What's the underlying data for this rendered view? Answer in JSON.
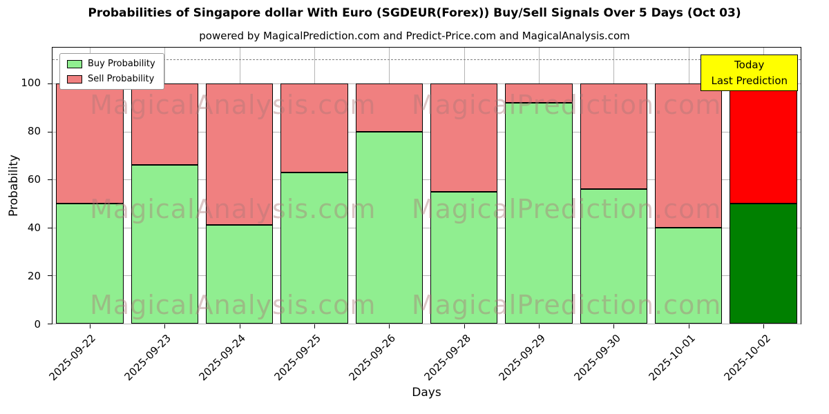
{
  "chart_data": {
    "type": "bar",
    "stacked": true,
    "title": "Probabilities of Singapore dollar With Euro (SGDEUR(Forex)) Buy/Sell Signals Over 5 Days (Oct 03)",
    "subtitle": "powered by MagicalPrediction.com and Predict-Price.com and MagicalAnalysis.com",
    "categories": [
      "2025-09-22",
      "2025-09-23",
      "2025-09-24",
      "2025-09-25",
      "2025-09-26",
      "2025-09-28",
      "2025-09-29",
      "2025-09-30",
      "2025-10-01",
      "2025-10-02"
    ],
    "series": [
      {
        "name": "Buy Probability",
        "values": [
          50,
          66,
          41,
          63,
          80,
          55,
          92,
          56,
          40,
          50
        ],
        "color": "#90EE90",
        "last_bar_color": "#008000"
      },
      {
        "name": "Sell Probability",
        "values": [
          50,
          34,
          59,
          37,
          20,
          45,
          8,
          44,
          60,
          50
        ],
        "color": "#F08080",
        "last_bar_color": "#FF0000"
      }
    ],
    "xlabel": "Days",
    "ylabel": "Probability",
    "ylim": [
      0,
      115
    ],
    "yticks": [
      0,
      20,
      40,
      60,
      80,
      100
    ],
    "dashed_line_y": 110,
    "grid": true,
    "bar_width": 0.9,
    "legend_position": "upper left",
    "annotation_box": {
      "line1": "Today",
      "line2": "Last Prediction",
      "bg": "#FFFF00"
    },
    "watermarks": {
      "left_text": "MagicalAnalysis.com",
      "right_text": "MagicalPrediction.com",
      "rows": 3
    }
  }
}
